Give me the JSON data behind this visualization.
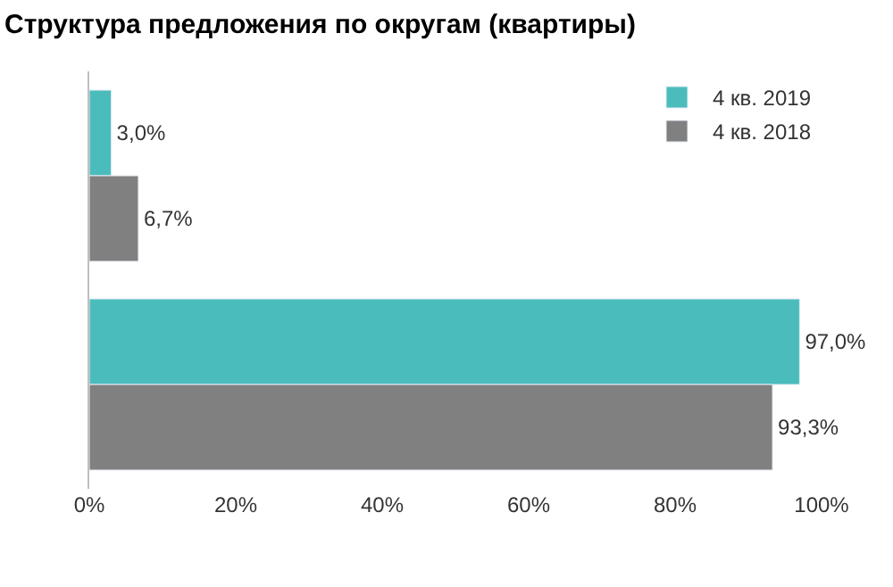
{
  "chart_data": {
    "type": "bar",
    "orientation": "horizontal",
    "title": "Структура предложения по округам (квартиры)",
    "categories": [
      null,
      null
    ],
    "series": [
      {
        "name": "4 кв. 2019",
        "color": "#4bbcbc",
        "values": [
          3.0,
          97.0
        ],
        "value_labels": [
          "3,0%",
          "97,0%"
        ]
      },
      {
        "name": "4 кв. 2018",
        "color": "#808080",
        "values": [
          6.7,
          93.3
        ],
        "value_labels": [
          "6,7%",
          "93,3%"
        ]
      }
    ],
    "xlim": [
      0,
      100
    ],
    "xticks": [
      {
        "value": 0,
        "label": "0%"
      },
      {
        "value": 20,
        "label": "20%"
      },
      {
        "value": 40,
        "label": "40%"
      },
      {
        "value": 60,
        "label": "60%"
      },
      {
        "value": 80,
        "label": "80%"
      },
      {
        "value": 100,
        "label": "100%"
      }
    ],
    "legend": "top right"
  }
}
